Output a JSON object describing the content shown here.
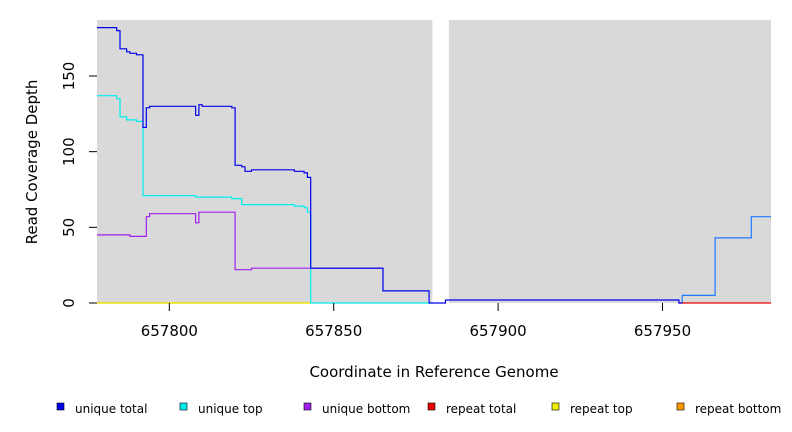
{
  "chart_data": {
    "type": "line",
    "title": "",
    "xlabel": "Coordinate in Reference Genome",
    "ylabel": "Read Coverage Depth",
    "xlim": [
      657778,
      657983
    ],
    "ylim": [
      0,
      187
    ],
    "x_ticks": [
      657800,
      657850,
      657900,
      657950
    ],
    "y_ticks": [
      0,
      50,
      100,
      150
    ],
    "grid": false,
    "background": "#d9d9d9",
    "gap": {
      "x_start": 657880,
      "x_end": 657885,
      "color": "#ffffff"
    },
    "legend_position": "bottom",
    "series": [
      {
        "name": "unique total",
        "color": "#0000ee",
        "points": [
          [
            657778,
            182
          ],
          [
            657784,
            182
          ],
          [
            657784,
            180
          ],
          [
            657785,
            180
          ],
          [
            657785,
            168
          ],
          [
            657787,
            168
          ],
          [
            657787,
            166
          ],
          [
            657788,
            166
          ],
          [
            657788,
            165
          ],
          [
            657790,
            165
          ],
          [
            657790,
            164
          ],
          [
            657792,
            164
          ],
          [
            657792,
            116
          ],
          [
            657793,
            116
          ],
          [
            657793,
            129
          ],
          [
            657794,
            129
          ],
          [
            657794,
            130
          ],
          [
            657808,
            130
          ],
          [
            657808,
            124
          ],
          [
            657809,
            124
          ],
          [
            657809,
            131
          ],
          [
            657810,
            131
          ],
          [
            657810,
            130
          ],
          [
            657819,
            130
          ],
          [
            657819,
            129
          ],
          [
            657820,
            129
          ],
          [
            657820,
            91
          ],
          [
            657822,
            91
          ],
          [
            657822,
            90
          ],
          [
            657823,
            90
          ],
          [
            657823,
            87
          ],
          [
            657825,
            87
          ],
          [
            657825,
            88
          ],
          [
            657838,
            88
          ],
          [
            657838,
            87
          ],
          [
            657841,
            87
          ],
          [
            657841,
            86
          ],
          [
            657842,
            86
          ],
          [
            657842,
            83
          ],
          [
            657843,
            83
          ],
          [
            657843,
            23
          ],
          [
            657865,
            23
          ],
          [
            657865,
            8
          ],
          [
            657879,
            8
          ],
          [
            657879,
            0
          ],
          [
            657884,
            0
          ],
          [
            657884,
            2
          ],
          [
            657955,
            2
          ],
          [
            657955,
            0
          ],
          [
            657956,
            0
          ]
        ]
      },
      {
        "name": "unique top",
        "color": "#00eeee",
        "points": [
          [
            657778,
            137
          ],
          [
            657784,
            137
          ],
          [
            657784,
            135
          ],
          [
            657785,
            135
          ],
          [
            657785,
            123
          ],
          [
            657787,
            123
          ],
          [
            657787,
            121
          ],
          [
            657790,
            121
          ],
          [
            657790,
            120
          ],
          [
            657792,
            120
          ],
          [
            657792,
            71
          ],
          [
            657808,
            71
          ],
          [
            657808,
            70
          ],
          [
            657819,
            70
          ],
          [
            657819,
            69
          ],
          [
            657822,
            69
          ],
          [
            657822,
            65
          ],
          [
            657838,
            65
          ],
          [
            657838,
            64
          ],
          [
            657841,
            64
          ],
          [
            657841,
            63
          ],
          [
            657842,
            63
          ],
          [
            657842,
            60
          ],
          [
            657843,
            60
          ],
          [
            657843,
            0
          ],
          [
            657880,
            0
          ]
        ]
      },
      {
        "name": "unique bottom",
        "color": "#a020f0",
        "points": [
          [
            657778,
            45
          ],
          [
            657788,
            45
          ],
          [
            657788,
            44
          ],
          [
            657793,
            44
          ],
          [
            657793,
            57
          ],
          [
            657794,
            57
          ],
          [
            657794,
            59
          ],
          [
            657808,
            59
          ],
          [
            657808,
            53
          ],
          [
            657809,
            53
          ],
          [
            657809,
            60
          ],
          [
            657820,
            60
          ],
          [
            657820,
            22
          ],
          [
            657825,
            22
          ],
          [
            657825,
            23
          ],
          [
            657865,
            23
          ]
        ]
      },
      {
        "name": "repeat total",
        "color": "#ee0000",
        "points": [
          [
            657955,
            0
          ],
          [
            657983,
            0
          ]
        ]
      },
      {
        "name": "repeat top",
        "color": "#eeee00",
        "points": [
          [
            657778,
            0
          ],
          [
            657843,
            0
          ]
        ]
      },
      {
        "name": "repeat bottom",
        "color": "#ff9900",
        "points": [
          [
            657778,
            0
          ],
          [
            657843,
            0
          ]
        ]
      },
      {
        "name": "",
        "color": "#1e78ff",
        "points": [
          [
            657956,
            0
          ],
          [
            657956,
            5
          ],
          [
            657966,
            5
          ],
          [
            657966,
            43
          ],
          [
            657977,
            43
          ],
          [
            657977,
            57
          ],
          [
            657983,
            57
          ]
        ]
      }
    ]
  }
}
